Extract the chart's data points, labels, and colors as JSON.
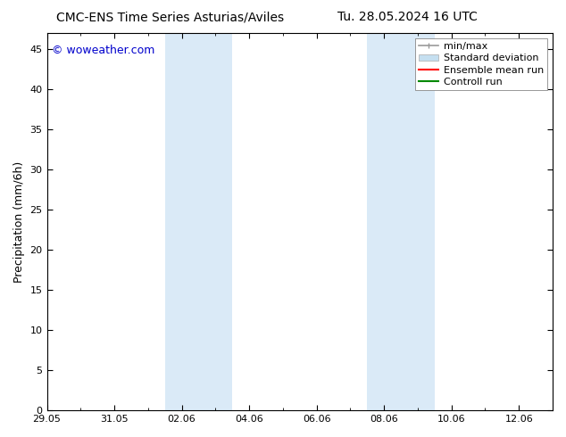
{
  "title_left": "CMC-ENS Time Series Asturias/Aviles",
  "title_right": "Tu. 28.05.2024 16 UTC",
  "ylabel": "Precipitation (mm/6h)",
  "watermark": "© woweather.com",
  "watermark_color": "#0000cc",
  "ylim": [
    0,
    47
  ],
  "yticks": [
    0,
    5,
    10,
    15,
    20,
    25,
    30,
    35,
    40,
    45
  ],
  "xtick_labels": [
    "29.05",
    "31.05",
    "02.06",
    "04.06",
    "06.06",
    "08.06",
    "10.06",
    "12.06"
  ],
  "xtick_positions_days": [
    0,
    2,
    4,
    6,
    8,
    10,
    12,
    14
  ],
  "total_days": 15,
  "background_color": "#ffffff",
  "plot_bg_color": "#ffffff",
  "shaded_regions": [
    {
      "x_start_day": 3.5,
      "x_end_day": 5.5,
      "color": "#daeaf7"
    },
    {
      "x_start_day": 9.5,
      "x_end_day": 11.5,
      "color": "#daeaf7"
    }
  ],
  "legend_items": [
    {
      "label": "min/max",
      "color": "#aaaaaa",
      "lw": 1.5
    },
    {
      "label": "Standard deviation",
      "color": "#c5dff0",
      "lw": 8
    },
    {
      "label": "Ensemble mean run",
      "color": "#ff0000",
      "lw": 1.5
    },
    {
      "label": "Controll run",
      "color": "#008800",
      "lw": 1.5
    }
  ],
  "title_fontsize": 10,
  "tick_fontsize": 8,
  "legend_fontsize": 8,
  "ylabel_fontsize": 9,
  "watermark_fontsize": 9
}
